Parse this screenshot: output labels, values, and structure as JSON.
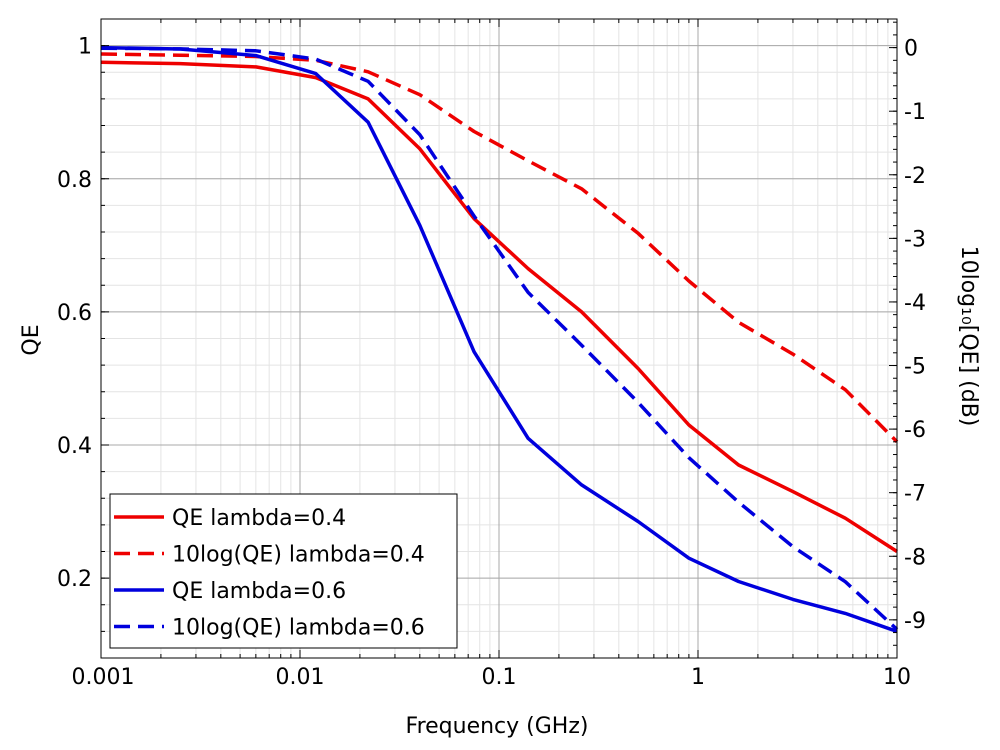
{
  "chart_data": {
    "type": "line",
    "xlabel": "Frequency (GHz)",
    "ylabel_left": "QE",
    "ylabel_right": "10log₁₀[QE] (dB)",
    "x_scale": "log",
    "xlim": [
      0.001,
      10
    ],
    "ylim_left": [
      0.08,
      1.04
    ],
    "ylim_right": [
      -9.6,
      0.45
    ],
    "x_ticks": [
      0.001,
      0.01,
      0.1,
      1,
      10
    ],
    "x_tick_labels": [
      "0.001",
      "0.01",
      "0.1",
      "1",
      "10"
    ],
    "y_left_ticks": [
      0.2,
      0.4,
      0.6,
      0.8,
      1
    ],
    "y_left_tick_labels": [
      "0.2",
      "0.4",
      "0.6",
      "0.8",
      "1"
    ],
    "y_right_ticks": [
      0,
      -1,
      -2,
      -3,
      -4,
      -5,
      -6,
      -7,
      -8,
      -9
    ],
    "y_right_tick_labels": [
      "0",
      "-1",
      "-2",
      "-3",
      "-4",
      "-5",
      "-6",
      "-7",
      "-8",
      "-9"
    ],
    "grid": true,
    "legend_position": "bottom-left",
    "series": [
      {
        "name": "QE lambda=0.4",
        "axis": "left",
        "color": "#ee0000",
        "dash": "solid",
        "x": [
          0.001,
          0.0025,
          0.006,
          0.012,
          0.022,
          0.04,
          0.075,
          0.14,
          0.26,
          0.5,
          0.9,
          1.6,
          3,
          5.5,
          10
        ],
        "y": [
          0.975,
          0.973,
          0.968,
          0.952,
          0.92,
          0.845,
          0.74,
          0.665,
          0.6,
          0.515,
          0.43,
          0.37,
          0.33,
          0.29,
          0.24
        ]
      },
      {
        "name": "10log(QE) lambda=0.4",
        "axis": "right",
        "color": "#ee0000",
        "dash": "dashed",
        "x": [
          0.001,
          0.0025,
          0.006,
          0.012,
          0.022,
          0.04,
          0.075,
          0.14,
          0.26,
          0.5,
          0.9,
          1.6,
          3,
          5.5,
          10
        ],
        "y": [
          -0.1,
          -0.12,
          -0.14,
          -0.2,
          -0.38,
          -0.74,
          -1.32,
          -1.78,
          -2.22,
          -2.92,
          -3.67,
          -4.32,
          -4.82,
          -5.38,
          -6.2
        ]
      },
      {
        "name": "QE lambda=0.6",
        "axis": "left",
        "color": "#0000dd",
        "dash": "solid",
        "x": [
          0.001,
          0.0025,
          0.006,
          0.012,
          0.022,
          0.04,
          0.075,
          0.14,
          0.26,
          0.5,
          0.9,
          1.6,
          3,
          5.5,
          10
        ],
        "y": [
          0.997,
          0.995,
          0.985,
          0.958,
          0.885,
          0.73,
          0.54,
          0.41,
          0.34,
          0.285,
          0.23,
          0.195,
          0.168,
          0.147,
          0.12
        ]
      },
      {
        "name": "10log(QE) lambda=0.6",
        "axis": "right",
        "color": "#0000dd",
        "dash": "dashed",
        "x": [
          0.001,
          0.0025,
          0.006,
          0.012,
          0.022,
          0.04,
          0.075,
          0.14,
          0.26,
          0.5,
          0.9,
          1.6,
          3,
          5.5,
          10
        ],
        "y": [
          -0.01,
          -0.02,
          -0.05,
          -0.18,
          -0.53,
          -1.37,
          -2.65,
          -3.85,
          -4.68,
          -5.58,
          -6.45,
          -7.15,
          -7.85,
          -8.4,
          -9.15
        ]
      }
    ]
  }
}
